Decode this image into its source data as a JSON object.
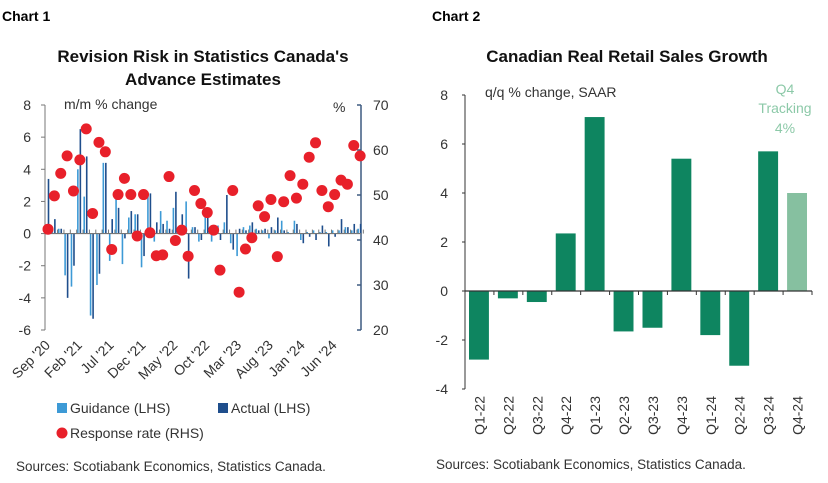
{
  "colors": {
    "guidance": "#3d9ad6",
    "actual": "#1f4e8c",
    "response": "#e8202a",
    "green": "#0e8560",
    "green_light": "#86c0a0",
    "annotation": "#8cc9a8",
    "axis_right": "#3d5a80"
  },
  "chart_data": [
    {
      "header": "Chart 1",
      "type": "bar+scatter",
      "title_lines": [
        "Revision Risk in Statistics Canada's",
        "Advance Estimates"
      ],
      "ylabel": "m/m % change",
      "y2label": "%",
      "ylim": [
        -6,
        8
      ],
      "yticks": [
        -6,
        -4,
        -2,
        0,
        2,
        4,
        6,
        8
      ],
      "y2lim": [
        20,
        70
      ],
      "y2ticks": [
        20,
        30,
        40,
        50,
        60,
        70
      ],
      "x_start": "Sep 2020",
      "x_frequency": "monthly",
      "xtick_labels": [
        "Sep '20",
        "Feb '21",
        "Jul '21",
        "Dec '21",
        "May '22",
        "Oct '22",
        "Mar '23",
        "Aug '23",
        "Jan '24",
        "Jun '24"
      ],
      "xtick_every": 5,
      "series": [
        {
          "name": "Guidance (LHS)",
          "axis": "left",
          "kind": "bar",
          "values": [
            0,
            0.3,
            0.3,
            -2.6,
            -3.3,
            4.0,
            2.3,
            -5.1,
            -3.2,
            4.4,
            -1.7,
            2.4,
            -1.9,
            1.0,
            1.2,
            -2.1,
            2.4,
            -0.5,
            1.4,
            0.8,
            1.6,
            0.5,
            2.0,
            0.4,
            -0.5,
            1.2,
            -0.5,
            0.5,
            0.7,
            -0.6,
            -1.4,
            0.4,
            0.5,
            0.3,
            0.2,
            -0.3,
            0.2,
            0.8,
            0.1,
            0.8,
            -0.4,
            0.1,
            0.2,
            0.1,
            0.1,
            0.2,
            0.2,
            0.4,
            0.2,
            0.3
          ]
        },
        {
          "name": "Actual (LHS)",
          "axis": "left",
          "kind": "bar",
          "values": [
            3.4,
            0.9,
            0.3,
            -4.0,
            -2.0,
            6.5,
            4.8,
            -5.3,
            -2.5,
            4.4,
            0.9,
            1.6,
            -0.3,
            1.4,
            1.2,
            -1.4,
            2.5,
            0.7,
            0.6,
            0.3,
            2.6,
            1.2,
            -2.8,
            0.4,
            -0.4,
            1.0,
            0.3,
            -0.4,
            2.4,
            -1.0,
            0.3,
            0.2,
            0.7,
            0.2,
            0.3,
            0.4,
            1.0,
            0.2,
            0.0,
            0.6,
            -0.6,
            -0.2,
            -0.4,
            0.5,
            -0.8,
            -0.2,
            0.9,
            0.4,
            0.6,
            0.6
          ]
        },
        {
          "name": "Response rate (RHS)",
          "axis": "right",
          "kind": "scatter",
          "values": [
            42.4,
            49.8,
            54.8,
            58.7,
            50.9,
            57.8,
            64.7,
            45.9,
            61.7,
            59.6,
            37.9,
            50.1,
            53.7,
            50.1,
            40.9,
            50.1,
            41.6,
            36.5,
            36.7,
            54.1,
            39.9,
            42.2,
            36.4,
            51.0,
            48.1,
            46.1,
            42.2,
            33.3,
            null,
            51.0,
            28.4,
            38.0,
            40.5,
            47.6,
            45.2,
            49.0,
            36.3,
            48.5,
            54.3,
            49.3,
            52.4,
            58.4,
            61.6,
            51.0,
            47.4,
            50.1,
            53.3,
            52.4,
            61.0,
            58.7
          ]
        }
      ],
      "legend": [
        "Guidance (LHS)",
        "Actual (LHS)",
        "Response rate (RHS)"
      ],
      "legend_position": "bottom",
      "source": "Sources: Scotiabank Economics, Statistics Canada."
    },
    {
      "header": "Chart 2",
      "type": "bar",
      "title": "Canadian Real Retail Sales Growth",
      "ylabel": "q/q % change, SAAR",
      "ylim": [
        -4,
        8
      ],
      "yticks": [
        -4,
        -2,
        0,
        2,
        4,
        6,
        8
      ],
      "categories": [
        "Q1-22",
        "Q2-22",
        "Q3-22",
        "Q4-22",
        "Q1-23",
        "Q2-23",
        "Q3-23",
        "Q4-23",
        "Q1-24",
        "Q2-24",
        "Q3-24",
        "Q4-24"
      ],
      "values": [
        -2.8,
        -0.3,
        -0.45,
        2.35,
        7.1,
        -1.65,
        -1.5,
        5.4,
        -1.8,
        -3.05,
        5.7,
        4.0
      ],
      "highlight_last": true,
      "annotation_lines": [
        "Q4",
        "Tracking",
        "4%"
      ],
      "source": "Sources: Scotiabank Economics, Statistics Canada."
    }
  ]
}
